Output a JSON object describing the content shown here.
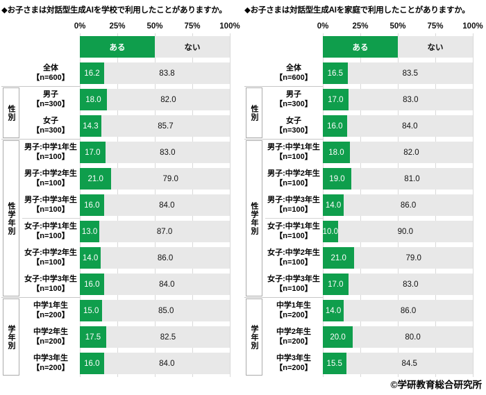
{
  "page": {
    "copyright": "©学研教育総合研究所"
  },
  "colors": {
    "yes_green": "#0f9e4c",
    "no_gray": "#e8e8e8",
    "gridline": "#d9d9d9",
    "separator": "#c6c6c6",
    "group_box_border": "#ababab"
  },
  "chart_data": [
    {
      "type": "bar",
      "orientation": "horizontal-stacked",
      "title": "◆お子さまは対話型生成AIを学校で利用したことがありますか。",
      "x_ticks": [
        "0%",
        "25%",
        "50%",
        "75%",
        "100%"
      ],
      "xlim": [
        0,
        100
      ],
      "grid": true,
      "legend_position": "top",
      "legend": [
        "ある",
        "ない"
      ],
      "groups": [
        {
          "label": "",
          "rows": [
            0
          ]
        },
        {
          "label": "性別",
          "rows": [
            1,
            2
          ]
        },
        {
          "label": "性学年別",
          "rows": [
            3,
            4,
            5,
            6,
            7,
            8
          ]
        },
        {
          "label": "学年別",
          "rows": [
            9,
            10,
            11
          ]
        }
      ],
      "sub_separators": [
        6
      ],
      "rows": [
        {
          "label": "全体",
          "n": "【n=600】",
          "yes": 16.2,
          "no": 83.8
        },
        {
          "label": "男子",
          "n": "【n=300】",
          "yes": 18.0,
          "no": 82.0
        },
        {
          "label": "女子",
          "n": "【n=300】",
          "yes": 14.3,
          "no": 85.7
        },
        {
          "label": "男子:中学1年生",
          "n": "【n=100】",
          "yes": 17.0,
          "no": 83.0
        },
        {
          "label": "男子:中学2年生",
          "n": "【n=100】",
          "yes": 21.0,
          "no": 79.0
        },
        {
          "label": "男子:中学3年生",
          "n": "【n=100】",
          "yes": 16.0,
          "no": 84.0
        },
        {
          "label": "女子:中学1年生",
          "n": "【n=100】",
          "yes": 13.0,
          "no": 87.0
        },
        {
          "label": "女子:中学2年生",
          "n": "【n=100】",
          "yes": 14.0,
          "no": 86.0
        },
        {
          "label": "女子:中学3年生",
          "n": "【n=100】",
          "yes": 16.0,
          "no": 84.0
        },
        {
          "label": "中学1年生",
          "n": "【n=200】",
          "yes": 15.0,
          "no": 85.0
        },
        {
          "label": "中学2年生",
          "n": "【n=200】",
          "yes": 17.5,
          "no": 82.5
        },
        {
          "label": "中学3年生",
          "n": "【n=200】",
          "yes": 16.0,
          "no": 84.0
        }
      ]
    },
    {
      "type": "bar",
      "orientation": "horizontal-stacked",
      "title": "◆お子さまは対話型生成AIを家庭で利用したことがありますか。",
      "x_ticks": [
        "0%",
        "25%",
        "50%",
        "75%",
        "100%"
      ],
      "xlim": [
        0,
        100
      ],
      "grid": true,
      "legend_position": "top",
      "legend": [
        "ある",
        "ない"
      ],
      "groups": [
        {
          "label": "",
          "rows": [
            0
          ]
        },
        {
          "label": "性別",
          "rows": [
            1,
            2
          ]
        },
        {
          "label": "性学年別",
          "rows": [
            3,
            4,
            5,
            6,
            7,
            8
          ]
        },
        {
          "label": "学年別",
          "rows": [
            9,
            10,
            11
          ]
        }
      ],
      "sub_separators": [
        6
      ],
      "rows": [
        {
          "label": "全体",
          "n": "【n=600】",
          "yes": 16.5,
          "no": 83.5
        },
        {
          "label": "男子",
          "n": "【n=300】",
          "yes": 17.0,
          "no": 83.0
        },
        {
          "label": "女子",
          "n": "【n=300】",
          "yes": 16.0,
          "no": 84.0
        },
        {
          "label": "男子:中学1年生",
          "n": "【n=100】",
          "yes": 18.0,
          "no": 82.0
        },
        {
          "label": "男子:中学2年生",
          "n": "【n=100】",
          "yes": 19.0,
          "no": 81.0
        },
        {
          "label": "男子:中学3年生",
          "n": "【n=100】",
          "yes": 14.0,
          "no": 86.0
        },
        {
          "label": "女子:中学1年生",
          "n": "【n=100】",
          "yes": 10.0,
          "no": 90.0
        },
        {
          "label": "女子:中学2年生",
          "n": "【n=100】",
          "yes": 21.0,
          "no": 79.0
        },
        {
          "label": "女子:中学3年生",
          "n": "【n=100】",
          "yes": 17.0,
          "no": 83.0
        },
        {
          "label": "中学1年生",
          "n": "【n=200】",
          "yes": 14.0,
          "no": 86.0
        },
        {
          "label": "中学2年生",
          "n": "【n=200】",
          "yes": 20.0,
          "no": 80.0
        },
        {
          "label": "中学3年生",
          "n": "【n=200】",
          "yes": 15.5,
          "no": 84.5
        }
      ]
    }
  ]
}
